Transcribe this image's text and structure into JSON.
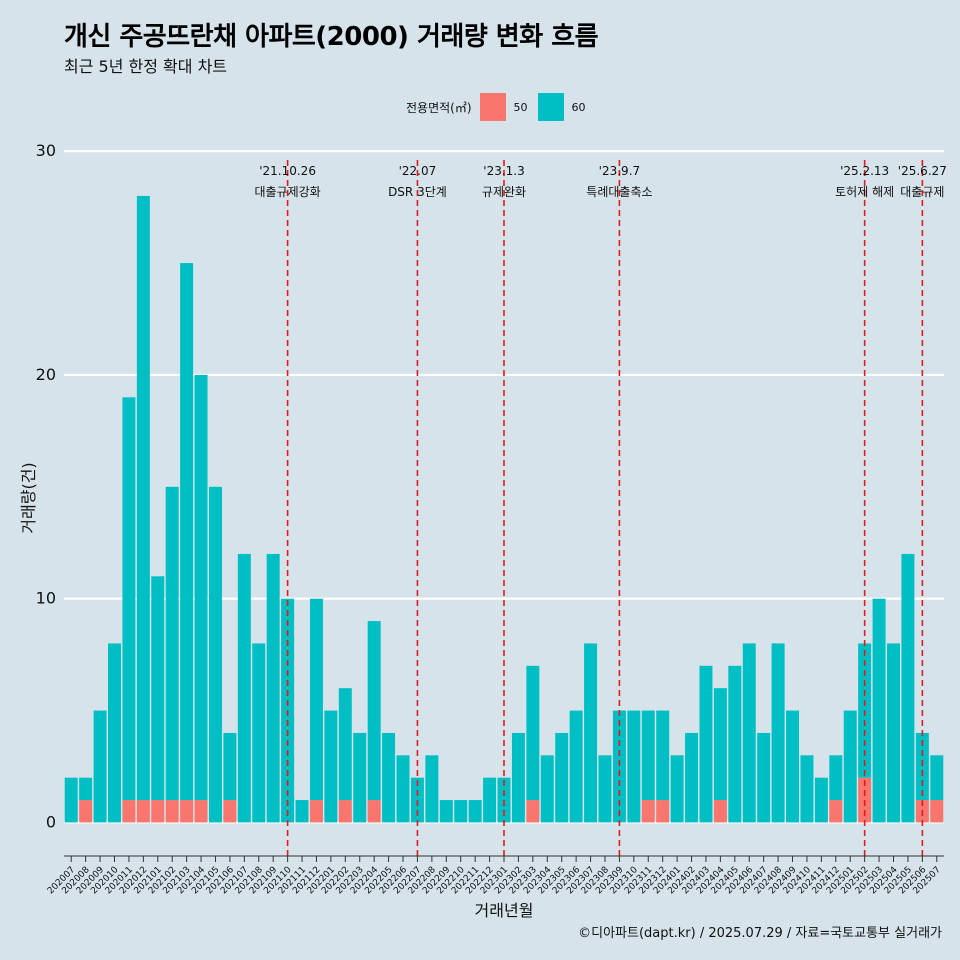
{
  "header": {
    "title": "개신 주공뜨란채 아파트(2000) 거래량 변화 흐름",
    "subtitle": "최근 5년 한정 확대 차트"
  },
  "legend": {
    "title": "전용면적(㎡)",
    "items": [
      {
        "label": "50",
        "color": "#f8766d"
      },
      {
        "label": "60",
        "color": "#00bfc4"
      }
    ]
  },
  "caption": "©디아파트(dapt.kr) / 2025.07.29 / 자료=국토교통부 실거래가",
  "chart_data": {
    "type": "bar",
    "stacked": true,
    "xlabel": "거래년월",
    "ylabel": "거래량(건)",
    "ylim": [
      -1.5,
      30.5
    ],
    "yticks": [
      0,
      10,
      20,
      30
    ],
    "grid": true,
    "legend_position": "top",
    "categories": [
      "202007",
      "202008",
      "202009",
      "202010",
      "202011",
      "202012",
      "202101",
      "202102",
      "202103",
      "202104",
      "202105",
      "202106",
      "202107",
      "202108",
      "202109",
      "202110",
      "202111",
      "202112",
      "202201",
      "202202",
      "202203",
      "202204",
      "202205",
      "202206",
      "202207",
      "202208",
      "202209",
      "202210",
      "202211",
      "202212",
      "202301",
      "202302",
      "202303",
      "202304",
      "202305",
      "202306",
      "202307",
      "202308",
      "202309",
      "202310",
      "202311",
      "202312",
      "202401",
      "202402",
      "202403",
      "202404",
      "202405",
      "202406",
      "202407",
      "202408",
      "202409",
      "202410",
      "202411",
      "202412",
      "202501",
      "202502",
      "202503",
      "202504",
      "202505",
      "202506",
      "202507"
    ],
    "series": [
      {
        "name": "50",
        "color": "#f8766d",
        "values": [
          0,
          1,
          0,
          0,
          1,
          1,
          1,
          1,
          1,
          1,
          0,
          1,
          0,
          0,
          0,
          0,
          0,
          1,
          0,
          1,
          0,
          1,
          0,
          0,
          0,
          0,
          0,
          0,
          0,
          0,
          0,
          0,
          1,
          0,
          0,
          0,
          0,
          0,
          0,
          0,
          1,
          1,
          0,
          0,
          0,
          1,
          0,
          0,
          0,
          0,
          0,
          0,
          0,
          1,
          0,
          2,
          0,
          0,
          0,
          1,
          1
        ]
      },
      {
        "name": "60",
        "color": "#00bfc4",
        "values": [
          2,
          1,
          5,
          8,
          18,
          27,
          10,
          14,
          24,
          19,
          15,
          3,
          12,
          8,
          12,
          10,
          1,
          9,
          5,
          5,
          4,
          8,
          4,
          3,
          2,
          3,
          1,
          1,
          1,
          2,
          2,
          4,
          6,
          3,
          4,
          5,
          8,
          3,
          5,
          5,
          4,
          4,
          3,
          4,
          7,
          5,
          7,
          8,
          4,
          8,
          5,
          3,
          2,
          2,
          5,
          6,
          10,
          8,
          12,
          3,
          2
        ]
      }
    ],
    "annotations": [
      {
        "date": "'21.10.26",
        "label": "대출규제강화",
        "category": "202110"
      },
      {
        "date": "'22.07",
        "label": "DSR 3단계",
        "category": "202207"
      },
      {
        "date": "'23.1.3",
        "label": "규제완화",
        "category": "202301"
      },
      {
        "date": "'23.9.7",
        "label": "특례대출축소",
        "category": "202309"
      },
      {
        "date": "'25.2.13",
        "label": "토허제 해제",
        "category": "202502"
      },
      {
        "date": "'25.6.27",
        "label": "대출규제",
        "category": "202506"
      }
    ]
  }
}
